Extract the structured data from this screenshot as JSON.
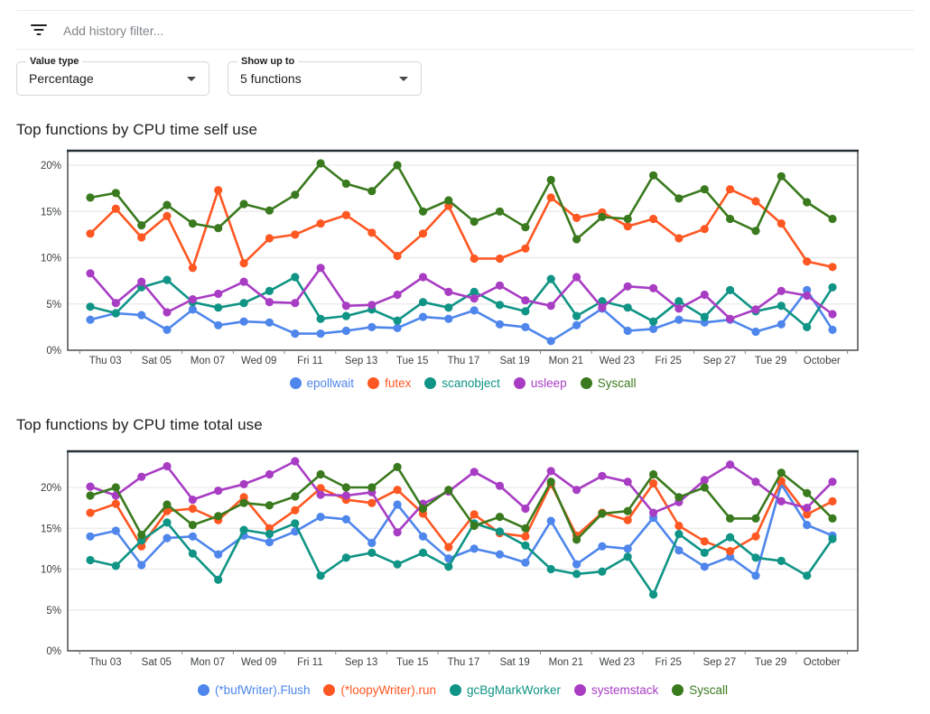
{
  "filter_bar": {
    "icon": "filter-list-icon",
    "placeholder": "Add history filter..."
  },
  "controls": [
    {
      "label": "Value type",
      "value": "Percentage"
    },
    {
      "label": "Show up to",
      "value": "5 functions"
    }
  ],
  "chart_data": [
    {
      "type": "line",
      "title": "Top functions by CPU time self use",
      "xlabel": "",
      "ylabel": "",
      "y_ticks": [
        "0%",
        "5%",
        "10%",
        "15%",
        "20%"
      ],
      "ylim": [
        0,
        21.5
      ],
      "grid": true,
      "legend_position": "bottom",
      "x_labels": [
        "Thu 03",
        "Sat 05",
        "Mon 07",
        "Wed 09",
        "Fri 11",
        "Sep 13",
        "Tue 15",
        "Thu 17",
        "Sat 19",
        "Mon 21",
        "Wed 23",
        "Fri 25",
        "Sep 27",
        "Tue 29",
        "October"
      ],
      "series": [
        {
          "name": "epollwait",
          "color": "#4e86ec",
          "values": [
            3.3,
            4.0,
            3.8,
            2.2,
            4.4,
            2.7,
            3.1,
            3.0,
            1.8,
            1.8,
            2.1,
            2.5,
            2.4,
            3.6,
            3.4,
            4.3,
            2.8,
            2.5,
            1.0,
            2.7,
            4.5,
            2.1,
            2.3,
            3.3,
            3.0,
            3.3,
            2.0,
            2.8,
            6.5,
            2.2
          ]
        },
        {
          "name": "futex",
          "color": "#ff5722",
          "values": [
            12.6,
            15.3,
            12.2,
            14.5,
            8.9,
            17.3,
            9.4,
            12.1,
            12.5,
            13.7,
            14.6,
            12.7,
            10.2,
            12.6,
            15.6,
            9.9,
            9.9,
            11.0,
            16.5,
            14.3,
            14.9,
            13.4,
            14.2,
            12.1,
            13.1,
            17.4,
            16.1,
            13.7,
            9.6,
            9.0
          ]
        },
        {
          "name": "scanobject",
          "color": "#0f9485",
          "values": [
            4.7,
            4.0,
            6.8,
            7.6,
            5.2,
            4.6,
            5.1,
            6.4,
            7.9,
            3.4,
            3.7,
            4.4,
            3.2,
            5.2,
            4.6,
            6.3,
            4.9,
            4.2,
            7.7,
            3.7,
            5.3,
            4.6,
            3.1,
            5.3,
            3.6,
            6.5,
            4.2,
            4.8,
            2.5,
            6.8
          ]
        },
        {
          "name": "usleep",
          "color": "#a83dc4",
          "values": [
            8.3,
            5.1,
            7.4,
            4.1,
            5.5,
            6.1,
            7.4,
            5.2,
            5.1,
            8.9,
            4.8,
            4.9,
            6.0,
            7.9,
            6.3,
            5.6,
            7.0,
            5.4,
            4.8,
            7.9,
            4.6,
            6.9,
            6.7,
            4.5,
            6.0,
            3.4,
            4.4,
            6.4,
            5.9,
            3.9
          ]
        },
        {
          "name": "Syscall",
          "color": "#3a7a1e",
          "values": [
            16.5,
            17.0,
            13.5,
            15.7,
            13.7,
            13.2,
            15.8,
            15.1,
            16.8,
            20.2,
            18.0,
            17.2,
            20.0,
            15.0,
            16.2,
            13.9,
            15.0,
            13.3,
            18.4,
            12.0,
            14.4,
            14.2,
            18.9,
            16.4,
            17.4,
            14.2,
            12.9,
            18.8,
            16.0,
            14.2
          ]
        }
      ]
    },
    {
      "type": "line",
      "title": "Top functions by CPU time total use",
      "xlabel": "",
      "ylabel": "",
      "y_ticks": [
        "0%",
        "5%",
        "10%",
        "15%",
        "20%"
      ],
      "ylim": [
        0,
        24.4
      ],
      "grid": true,
      "legend_position": "bottom",
      "x_labels": [
        "Thu 03",
        "Sat 05",
        "Mon 07",
        "Wed 09",
        "Fri 11",
        "Sep 13",
        "Tue 15",
        "Thu 17",
        "Sat 19",
        "Mon 21",
        "Wed 23",
        "Fri 25",
        "Sep 27",
        "Tue 29",
        "October"
      ],
      "series": [
        {
          "name": "(*bufWriter).Flush",
          "color": "#4e86ec",
          "values": [
            14.0,
            14.7,
            10.5,
            13.8,
            14.0,
            11.8,
            14.1,
            13.3,
            14.6,
            16.4,
            16.1,
            13.2,
            17.9,
            14.0,
            11.3,
            12.5,
            11.8,
            10.8,
            15.9,
            10.6,
            12.8,
            12.5,
            16.3,
            12.3,
            10.3,
            11.5,
            9.2,
            20.4,
            15.4,
            14.1
          ]
        },
        {
          "name": "(*loopyWriter).run",
          "color": "#ff5722",
          "values": [
            16.9,
            18.0,
            12.8,
            17.1,
            17.4,
            16.0,
            18.8,
            15.0,
            17.2,
            19.9,
            18.5,
            18.1,
            19.7,
            16.8,
            12.7,
            16.7,
            14.4,
            14.0,
            20.4,
            14.1,
            16.9,
            16.0,
            20.5,
            15.3,
            13.4,
            12.2,
            14.0,
            20.8,
            16.7,
            18.3
          ]
        },
        {
          "name": "gcBgMarkWorker",
          "color": "#0f9485",
          "values": [
            11.1,
            10.4,
            13.5,
            15.7,
            11.9,
            8.7,
            14.8,
            14.3,
            15.6,
            9.2,
            11.4,
            12.0,
            10.6,
            12.0,
            10.3,
            15.6,
            14.6,
            12.9,
            10.0,
            9.4,
            9.7,
            11.5,
            6.9,
            14.3,
            12.0,
            13.9,
            11.4,
            11.0,
            9.2,
            13.7
          ]
        },
        {
          "name": "systemstack",
          "color": "#a83dc4",
          "values": [
            20.1,
            19.0,
            21.3,
            22.6,
            18.5,
            19.6,
            20.4,
            21.6,
            23.2,
            19.1,
            19.0,
            19.4,
            14.5,
            18.0,
            19.5,
            21.9,
            20.2,
            17.4,
            22.0,
            19.7,
            21.4,
            20.7,
            16.9,
            18.2,
            20.9,
            22.8,
            20.7,
            18.3,
            17.5,
            20.7
          ]
        },
        {
          "name": "Syscall",
          "color": "#3a7a1e",
          "values": [
            19.0,
            20.0,
            14.2,
            17.9,
            15.4,
            16.5,
            18.1,
            17.8,
            18.9,
            21.6,
            20.0,
            20.0,
            22.5,
            17.4,
            19.7,
            15.3,
            16.4,
            15.0,
            20.7,
            13.6,
            16.8,
            17.1,
            21.6,
            18.8,
            20.0,
            16.2,
            16.2,
            21.8,
            19.3,
            16.2
          ]
        }
      ]
    }
  ]
}
